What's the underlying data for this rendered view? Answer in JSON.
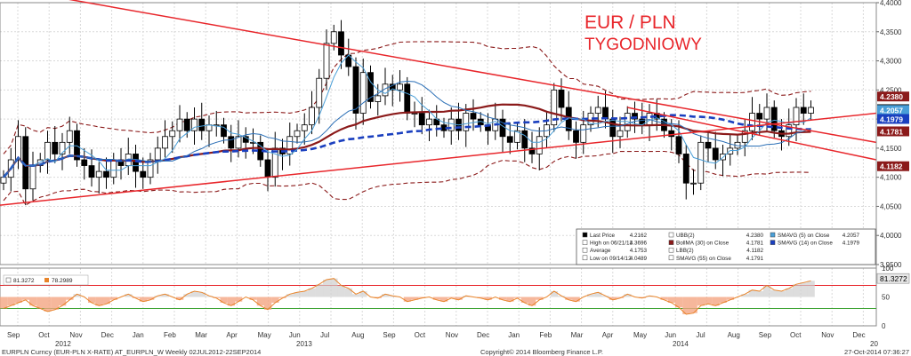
{
  "colors": {
    "grid": "#d9d9d9",
    "candle_up": "#ffffff",
    "candle_down": "#000000",
    "bollinger_band": "#8b1a1a",
    "bolma": "#8b1a1a",
    "sma5": "#4a9fd8",
    "sma55": "#1a3fbf",
    "trendline": "#e8262b",
    "rsi_line": "#e8842a",
    "rsi_fill": "#f4a582",
    "level_green": "#3fa535"
  },
  "chart_data": [
    {
      "type": "candlestick",
      "title": "EUR / PLN",
      "subtitle": "TYGODNIOWY",
      "y_axis": {
        "ticks": [
          "4,4000",
          "4,3500",
          "4,3000",
          "4,2500",
          "4,2000",
          "4,1500",
          "4,1000",
          "4,0500",
          "4,0000",
          "3,9500"
        ],
        "range": [
          3.95,
          4.4
        ],
        "position": "right"
      },
      "value_labels": [
        {
          "text": "4.2380",
          "value": 4.238,
          "color": "#8b1a1a"
        },
        {
          "text": "4.2162",
          "value": 4.2162,
          "color": "#000000"
        },
        {
          "text": "4.2057",
          "value": 4.2057,
          "color": "#4a9fd8"
        },
        {
          "text": "4.1979",
          "value": 4.1979,
          "color": "#1a3fbf"
        },
        {
          "text": "4.1781",
          "value": 4.1781,
          "color": "#8b1a1a"
        },
        {
          "text": "4.1182",
          "value": 4.1182,
          "color": "#8b1a1a"
        }
      ],
      "x_axis": {
        "months": [
          "Sep",
          "Oct",
          "Nov",
          "Dec",
          "Jan",
          "Feb",
          "Mar",
          "Apr",
          "May",
          "Jun",
          "Jul",
          "Aug",
          "Sep",
          "Oct",
          "Nov",
          "Dec",
          "Jan",
          "Feb",
          "Mar",
          "Apr",
          "May",
          "Jun",
          "Jul",
          "Aug",
          "Sep",
          "Oct",
          "Nov",
          "Dec"
        ],
        "years": [
          "2012",
          "2013",
          "2014",
          "20"
        ],
        "week_range": [
          "02JUL2012",
          "22SEP2014"
        ]
      },
      "weekly_close": [
        4.1,
        4.13,
        4.17,
        4.08,
        4.12,
        4.13,
        4.16,
        4.14,
        4.16,
        4.18,
        4.13,
        4.12,
        4.1,
        4.11,
        4.1,
        4.13,
        4.12,
        4.14,
        4.11,
        4.1,
        4.13,
        4.15,
        4.17,
        4.18,
        4.2,
        4.18,
        4.2,
        4.18,
        4.19,
        4.19,
        4.17,
        4.15,
        4.17,
        4.16,
        4.16,
        4.13,
        4.1,
        4.15,
        4.14,
        4.17,
        4.18,
        4.19,
        4.22,
        4.27,
        4.33,
        4.35,
        4.31,
        4.29,
        4.21,
        4.28,
        4.23,
        4.24,
        4.26,
        4.25,
        4.26,
        4.21,
        4.21,
        4.19,
        4.2,
        4.19,
        4.18,
        4.2,
        4.18,
        4.21,
        4.2,
        4.19,
        4.18,
        4.2,
        4.17,
        4.16,
        4.18,
        4.15,
        4.14,
        4.17,
        4.19,
        4.25,
        4.22,
        4.18,
        4.16,
        4.19,
        4.21,
        4.22,
        4.2,
        4.17,
        4.18,
        4.21,
        4.2,
        4.19,
        4.21,
        4.2,
        4.18,
        4.17,
        4.14,
        4.09,
        4.09,
        4.16,
        4.15,
        4.13,
        4.14,
        4.15,
        4.16,
        4.18,
        4.21,
        4.2,
        4.22,
        4.18,
        4.17,
        4.19,
        4.22,
        4.21,
        4.22
      ],
      "lines": {
        "trend_upper": [
          [
            -2,
            4.43
          ],
          [
            130,
            4.16
          ]
        ],
        "trend_lower": [
          [
            -2,
            4.05
          ],
          [
            130,
            4.21
          ]
        ],
        "trend_descending": [
          [
            85,
            4.22
          ],
          [
            130,
            4.13
          ]
        ]
      },
      "legend": [
        {
          "label": "Last Price",
          "value": "4.2162"
        },
        {
          "label": "High on 06/21/13",
          "value": "4.3696"
        },
        {
          "label": "Average",
          "value": "4.1753"
        },
        {
          "label": "Low on 09/14/12",
          "value": "4.0489"
        },
        {
          "label": "UBB(2)",
          "value": "4.2380"
        },
        {
          "label": "BollMA (30) on Close",
          "value": "4.1781"
        },
        {
          "label": "LBB(2)",
          "value": "4.1182"
        },
        {
          "label": "SMAVG (55) on Close",
          "value": "4.1791"
        },
        {
          "label": "SMAVG (5) on Close",
          "value": "4.2057"
        },
        {
          "label": "SMAVG (14) on Close",
          "value": "4.1979"
        }
      ]
    },
    {
      "type": "line",
      "series": [
        {
          "name": "81.3272",
          "value_label": "81.3272"
        },
        {
          "name": "78.2989"
        }
      ],
      "y_axis": {
        "ticks": [
          "100",
          "50",
          "0"
        ],
        "range": [
          0,
          100
        ]
      },
      "levels": [
        70,
        30
      ],
      "values": [
        30,
        35,
        40,
        45,
        35,
        30,
        25,
        28,
        35,
        45,
        55,
        50,
        40,
        35,
        38,
        45,
        50,
        55,
        48,
        42,
        45,
        52,
        55,
        50,
        45,
        55,
        60,
        58,
        52,
        48,
        40,
        35,
        42,
        50,
        45,
        35,
        28,
        40,
        48,
        55,
        58,
        60,
        65,
        72,
        80,
        82,
        70,
        65,
        55,
        60,
        50,
        48,
        55,
        52,
        50,
        42,
        45,
        48,
        50,
        45,
        42,
        48,
        45,
        52,
        50,
        48,
        45,
        50,
        45,
        42,
        48,
        40,
        35,
        45,
        50,
        60,
        52,
        45,
        42,
        50,
        55,
        58,
        52,
        45,
        48,
        55,
        50,
        48,
        52,
        50,
        45,
        40,
        32,
        20,
        22,
        35,
        38,
        35,
        40,
        45,
        50,
        55,
        62,
        60,
        70,
        62,
        60,
        65,
        72,
        75,
        78
      ]
    }
  ],
  "footer": {
    "left": "EURPLN Curncy (EUR-PLN X-RATE) AT_EURPLN_W  Weekly 02JUL2012-22SEP2014",
    "center": "Copyright© 2014 Bloomberg Finance L.P.",
    "right": "27-Oct-2014 07:36:27"
  }
}
